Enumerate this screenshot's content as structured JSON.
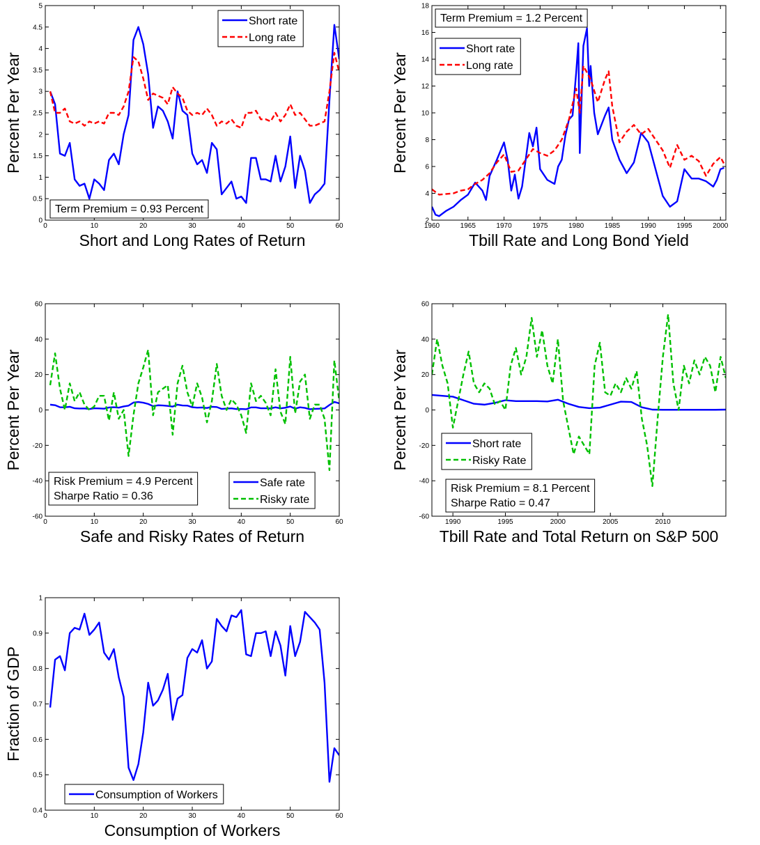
{
  "chart_data": [
    {
      "type": "line",
      "xlabel": "Short and Long Rates of Return",
      "ylabel": "Percent Per Year",
      "xlim": [
        0,
        60
      ],
      "ylim": [
        0,
        5
      ],
      "xticks": [
        0,
        10,
        20,
        30,
        40,
        50,
        60
      ],
      "yticks": [
        0,
        0.5,
        1,
        1.5,
        2,
        2.5,
        3,
        3.5,
        4,
        4.5,
        5
      ],
      "legend": "upper right",
      "annotations": [
        "Term Premium = 0.93 Percent"
      ],
      "x": [
        1,
        2,
        3,
        4,
        5,
        6,
        7,
        8,
        9,
        10,
        11,
        12,
        13,
        14,
        15,
        16,
        17,
        18,
        19,
        20,
        21,
        22,
        23,
        24,
        25,
        26,
        27,
        28,
        29,
        30,
        31,
        32,
        33,
        34,
        35,
        36,
        37,
        38,
        39,
        40,
        41,
        42,
        43,
        44,
        45,
        46,
        47,
        48,
        49,
        50,
        51,
        52,
        53,
        54,
        55,
        56,
        57,
        58,
        59,
        60
      ],
      "series": [
        {
          "name": "Short rate",
          "color": "#0000ff",
          "style": "solid",
          "values": [
            3.0,
            2.7,
            1.55,
            1.5,
            1.8,
            0.95,
            0.8,
            0.85,
            0.5,
            0.95,
            0.85,
            0.7,
            1.4,
            1.55,
            1.3,
            2.0,
            2.45,
            4.2,
            4.5,
            4.1,
            3.4,
            2.15,
            2.65,
            2.55,
            2.3,
            1.9,
            3.0,
            2.55,
            2.45,
            1.55,
            1.3,
            1.4,
            1.1,
            1.8,
            1.65,
            0.6,
            0.75,
            0.9,
            0.5,
            0.55,
            0.4,
            1.45,
            1.45,
            0.95,
            0.95,
            0.9,
            1.5,
            0.9,
            1.25,
            1.95,
            0.75,
            1.5,
            1.15,
            0.4,
            0.6,
            0.7,
            0.85,
            2.8,
            4.55,
            3.75
          ]
        },
        {
          "name": "Long rate",
          "color": "#ff0000",
          "style": "dashed",
          "values": [
            3.0,
            2.5,
            2.5,
            2.6,
            2.3,
            2.25,
            2.3,
            2.2,
            2.3,
            2.25,
            2.3,
            2.25,
            2.5,
            2.5,
            2.45,
            2.65,
            3.0,
            3.8,
            3.7,
            3.3,
            2.8,
            2.95,
            2.9,
            2.85,
            2.7,
            3.1,
            2.95,
            2.85,
            2.55,
            2.45,
            2.5,
            2.45,
            2.6,
            2.45,
            2.2,
            2.3,
            2.25,
            2.35,
            2.2,
            2.15,
            2.5,
            2.5,
            2.55,
            2.35,
            2.35,
            2.3,
            2.5,
            2.3,
            2.45,
            2.7,
            2.45,
            2.5,
            2.35,
            2.2,
            2.2,
            2.25,
            2.3,
            3.0,
            3.9,
            3.45
          ]
        }
      ]
    },
    {
      "type": "line",
      "xlabel": "Tbill Rate and Long Bond Yield",
      "ylabel": "Percent Per Year",
      "xlim": [
        1960,
        2000.75
      ],
      "ylim": [
        2,
        18
      ],
      "xticks": [
        1960,
        1965,
        1970,
        1975,
        1980,
        1985,
        1990,
        1995,
        2000
      ],
      "yticks": [
        2,
        4,
        6,
        8,
        10,
        12,
        14,
        16,
        18
      ],
      "legend": "upper left",
      "annotations": [
        "Term Premium = 1.2 Percent"
      ],
      "series": [
        {
          "name": "Short rate",
          "color": "#0000ff",
          "style": "solid",
          "x": [
            1960,
            1960.5,
            1961,
            1962,
            1963,
            1964,
            1965,
            1966,
            1967,
            1967.5,
            1968,
            1969,
            1970,
            1970.5,
            1971,
            1971.5,
            1972,
            1972.5,
            1973,
            1973.5,
            1974,
            1974.5,
            1975,
            1976,
            1977,
            1977.5,
            1978,
            1978.5,
            1979,
            1979.5,
            1980,
            1980.3,
            1980.5,
            1981,
            1981.5,
            1981.8,
            1982,
            1982.5,
            1983,
            1984,
            1984.5,
            1985,
            1986,
            1987,
            1988,
            1989,
            1990,
            1991,
            1992,
            1993,
            1994,
            1995,
            1996,
            1997,
            1998,
            1999,
            1999.5,
            2000,
            2000.5
          ],
          "values": [
            3.0,
            2.4,
            2.3,
            2.7,
            3.0,
            3.5,
            3.9,
            4.8,
            4.2,
            3.5,
            5.3,
            6.5,
            7.8,
            6.5,
            4.2,
            5.4,
            3.6,
            4.5,
            6.5,
            8.5,
            7.5,
            8.9,
            5.8,
            5.0,
            4.7,
            6.0,
            6.5,
            8.3,
            9.5,
            9.8,
            13.0,
            15.2,
            7.0,
            15.0,
            16.3,
            12.0,
            13.5,
            10.0,
            8.4,
            9.8,
            10.4,
            8.0,
            6.5,
            5.5,
            6.3,
            8.5,
            7.8,
            5.8,
            3.8,
            3.0,
            3.4,
            5.8,
            5.1,
            5.1,
            4.9,
            4.5,
            5.0,
            5.8,
            5.9
          ]
        },
        {
          "name": "Long rate",
          "color": "#ff0000",
          "style": "dashed",
          "x": [
            1960,
            1961,
            1962,
            1963,
            1964,
            1965,
            1966,
            1967,
            1968,
            1969,
            1970,
            1971,
            1972,
            1973,
            1974,
            1975,
            1976,
            1977,
            1978,
            1979,
            1980,
            1980.5,
            1981,
            1981.5,
            1982,
            1983,
            1984,
            1984.5,
            1985,
            1986,
            1987,
            1988,
            1989,
            1990,
            1991,
            1992,
            1993,
            1994,
            1995,
            1996,
            1997,
            1998,
            1999,
            2000,
            2000.5
          ],
          "values": [
            4.3,
            3.9,
            3.95,
            4.0,
            4.2,
            4.3,
            4.7,
            5.0,
            5.5,
            6.3,
            6.9,
            5.6,
            5.7,
            6.5,
            7.3,
            7.0,
            6.8,
            7.2,
            8.0,
            9.5,
            11.8,
            10.0,
            13.5,
            13.0,
            12.5,
            10.8,
            12.5,
            13.1,
            10.5,
            7.8,
            8.6,
            9.1,
            8.4,
            8.8,
            8.0,
            7.2,
            5.9,
            7.6,
            6.5,
            6.8,
            6.4,
            5.3,
            6.2,
            6.7,
            6.2
          ]
        }
      ]
    },
    {
      "type": "line",
      "xlabel": "Safe and Risky Rates of Return",
      "ylabel": "Percent Per Year",
      "xlim": [
        0,
        60
      ],
      "ylim": [
        -60,
        60
      ],
      "xticks": [
        0,
        10,
        20,
        30,
        40,
        50,
        60
      ],
      "yticks": [
        -60,
        -40,
        -20,
        0,
        20,
        40,
        60
      ],
      "legend": "lower right",
      "annotations": [
        "Risk Premium = 4.9 Percent",
        "Sharpe Ratio = 0.36"
      ],
      "x": [
        1,
        2,
        3,
        4,
        5,
        6,
        7,
        8,
        9,
        10,
        11,
        12,
        13,
        14,
        15,
        16,
        17,
        18,
        19,
        20,
        21,
        22,
        23,
        24,
        25,
        26,
        27,
        28,
        29,
        30,
        31,
        32,
        33,
        34,
        35,
        36,
        37,
        38,
        39,
        40,
        41,
        42,
        43,
        44,
        45,
        46,
        47,
        48,
        49,
        50,
        51,
        52,
        53,
        54,
        55,
        56,
        57,
        58,
        59,
        60
      ],
      "series": [
        {
          "name": "Safe rate",
          "color": "#0000ff",
          "style": "solid",
          "values": [
            3.0,
            2.7,
            1.55,
            1.5,
            1.8,
            0.95,
            0.8,
            0.85,
            0.5,
            0.95,
            0.85,
            0.7,
            1.4,
            1.55,
            1.3,
            2.0,
            2.45,
            4.2,
            4.5,
            4.1,
            3.4,
            2.15,
            2.65,
            2.55,
            2.3,
            1.9,
            3.0,
            2.55,
            2.45,
            1.55,
            1.3,
            1.4,
            1.1,
            1.8,
            1.65,
            0.6,
            0.75,
            0.9,
            0.5,
            0.55,
            0.4,
            1.45,
            1.45,
            0.95,
            0.95,
            0.9,
            1.5,
            0.9,
            1.25,
            1.95,
            0.75,
            1.5,
            1.15,
            0.4,
            0.6,
            0.7,
            0.85,
            2.8,
            4.55,
            3.75
          ]
        },
        {
          "name": "Risky rate",
          "color": "#00c000",
          "style": "dashed",
          "values": [
            14,
            32,
            12,
            0,
            15,
            5,
            10,
            3,
            0,
            2,
            8,
            8,
            -6,
            10,
            -5,
            0,
            -26,
            -3,
            15,
            24,
            34,
            -3,
            10,
            12,
            14,
            -14,
            15,
            25,
            10,
            2,
            15,
            7,
            -7,
            5,
            26,
            8,
            0,
            6,
            3,
            -3,
            -13,
            15,
            5,
            8,
            4,
            -3,
            23,
            -1,
            -8,
            30,
            -2,
            16,
            20,
            -5,
            3,
            3,
            -5,
            -34,
            28,
            5
          ]
        }
      ]
    },
    {
      "type": "line",
      "xlabel": "Tbill Rate and Total Return on S&P 500",
      "ylabel": "Percent Per Year",
      "xlim": [
        1988,
        2016
      ],
      "ylim": [
        -60,
        60
      ],
      "xticks": [
        1990,
        1995,
        2000,
        2005,
        2010
      ],
      "yticks": [
        -60,
        -40,
        -20,
        0,
        20,
        40,
        60
      ],
      "legend": "center left",
      "annotations": [
        "Risk Premium = 8.1 Percent",
        "Sharpe Ratio = 0.47"
      ],
      "series": [
        {
          "name": "Short rate",
          "color": "#0000ff",
          "style": "solid",
          "x": [
            1988,
            1989,
            1990,
            1991,
            1992,
            1993,
            1994,
            1995,
            1996,
            1997,
            1998,
            1999,
            2000,
            2001,
            2002,
            2003,
            2004,
            2005,
            2006,
            2007,
            2008,
            2009,
            2010,
            2011,
            2012,
            2013,
            2014,
            2015,
            2016
          ],
          "values": [
            8.5,
            8,
            7.5,
            5.5,
            3.5,
            3,
            4,
            5.5,
            5,
            5,
            5,
            4.8,
            5.8,
            3.5,
            1.7,
            1,
            1.3,
            3,
            4.7,
            4.5,
            1.5,
            0.2,
            0.1,
            0.1,
            0.1,
            0.1,
            0.1,
            0.1,
            0.2
          ]
        },
        {
          "name": "Risky Rate",
          "color": "#00c000",
          "style": "dashed",
          "x": [
            1988,
            1988.5,
            1989,
            1989.5,
            1990,
            1990.5,
            1991,
            1991.5,
            1992,
            1992.5,
            1993,
            1993.5,
            1994,
            1994.5,
            1995,
            1995.5,
            1996,
            1996.5,
            1997,
            1997.5,
            1998,
            1998.5,
            1999,
            1999.5,
            2000,
            2000.5,
            2001,
            2001.5,
            2002,
            2002.5,
            2003,
            2003.5,
            2004,
            2004.5,
            2005,
            2005.5,
            2006,
            2006.5,
            2007,
            2007.5,
            2008,
            2008.5,
            2009,
            2009.5,
            2010,
            2010.5,
            2011,
            2011.5,
            2012,
            2012.5,
            2013,
            2013.5,
            2014,
            2014.5,
            2015,
            2015.5,
            2016
          ],
          "values": [
            20,
            40,
            25,
            15,
            -10,
            5,
            20,
            33,
            15,
            10,
            15,
            12,
            3,
            5,
            0,
            25,
            35,
            20,
            30,
            52,
            30,
            45,
            25,
            15,
            40,
            5,
            -10,
            -25,
            -15,
            -20,
            -25,
            25,
            38,
            10,
            8,
            15,
            10,
            18,
            12,
            22,
            -5,
            -20,
            -43,
            -5,
            30,
            54,
            15,
            0,
            25,
            15,
            28,
            20,
            30,
            25,
            10,
            30,
            18
          ]
        }
      ]
    },
    {
      "type": "line",
      "xlabel": "Consumption of Workers",
      "ylabel": "Fraction of GDP",
      "xlim": [
        0,
        60
      ],
      "ylim": [
        0.4,
        1
      ],
      "xticks": [
        0,
        10,
        20,
        30,
        40,
        50,
        60
      ],
      "yticks": [
        0.4,
        0.5,
        0.6,
        0.7,
        0.8,
        0.9,
        1
      ],
      "legend": "lower left",
      "annotations": [],
      "x": [
        1,
        2,
        3,
        4,
        5,
        6,
        7,
        8,
        9,
        10,
        11,
        12,
        13,
        14,
        15,
        16,
        17,
        18,
        19,
        20,
        21,
        22,
        23,
        24,
        25,
        26,
        27,
        28,
        29,
        30,
        31,
        32,
        33,
        34,
        35,
        36,
        37,
        38,
        39,
        40,
        41,
        42,
        43,
        44,
        45,
        46,
        47,
        48,
        49,
        50,
        51,
        52,
        53,
        54,
        55,
        56,
        57,
        58,
        59,
        60
      ],
      "series": [
        {
          "name": "Consumption of Workers",
          "color": "#0000ff",
          "style": "solid",
          "values": [
            0.69,
            0.825,
            0.835,
            0.795,
            0.9,
            0.915,
            0.91,
            0.955,
            0.895,
            0.91,
            0.93,
            0.845,
            0.825,
            0.855,
            0.775,
            0.72,
            0.52,
            0.485,
            0.53,
            0.62,
            0.76,
            0.695,
            0.71,
            0.74,
            0.785,
            0.655,
            0.715,
            0.725,
            0.83,
            0.855,
            0.845,
            0.88,
            0.8,
            0.82,
            0.94,
            0.92,
            0.905,
            0.95,
            0.945,
            0.965,
            0.84,
            0.835,
            0.9,
            0.9,
            0.905,
            0.835,
            0.905,
            0.865,
            0.78,
            0.92,
            0.835,
            0.875,
            0.96,
            0.945,
            0.93,
            0.91,
            0.76,
            0.48,
            0.575,
            0.555
          ]
        }
      ]
    }
  ]
}
